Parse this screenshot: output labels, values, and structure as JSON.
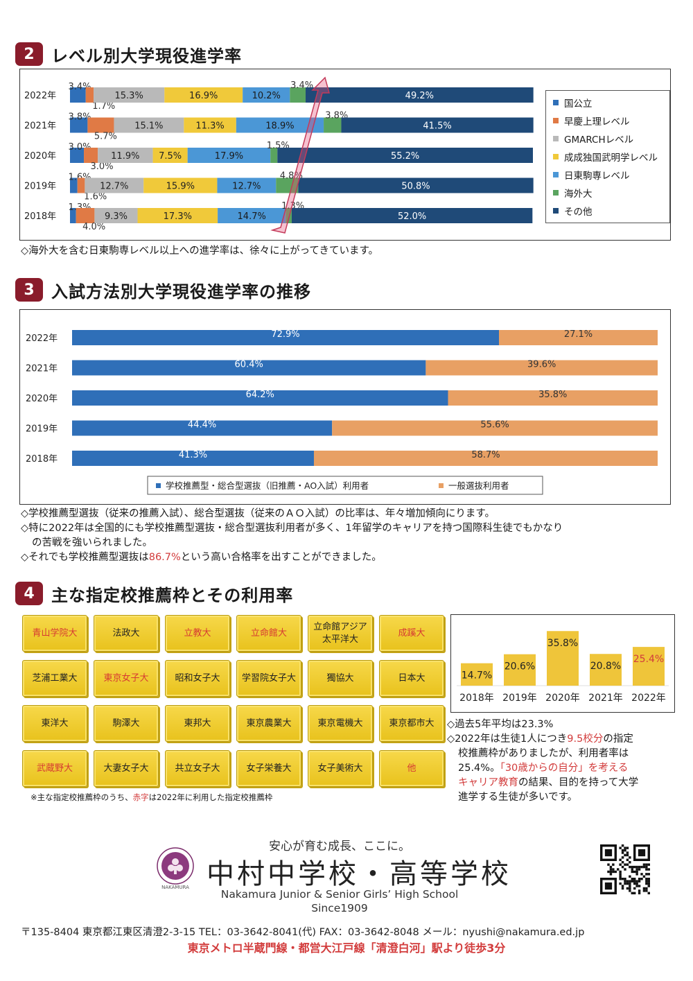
{
  "colors": {
    "kokkoritsu": "#2f6fb8",
    "soukei": "#e07a45",
    "gmarch": "#b9b9b9",
    "seisei": "#f0c93a",
    "nittou": "#4b97d6",
    "kaigai": "#5aa45f",
    "sonota": "#1f4a78",
    "suisen": "#2f6fb8",
    "ippan": "#e8a064",
    "accent": "#d23b3b",
    "section": "#8a1c2b"
  },
  "section2": {
    "num": "2",
    "title": "レベル別大学現役進学率",
    "note": "◇海外大を含む日東駒専レベル以上への進学率は、徐々に上がってきています。"
  },
  "section3": {
    "num": "3",
    "title": "入試方法別大学現役進学率の推移",
    "notes": [
      "◇学校推薦型選抜（従来の推薦入試）、総合型選抜（従来のＡＯ入試）の比率は、年々増加傾向にります。",
      "◇特に2022年は全国的にも学校推薦型選抜・総合型選抜利用者が多く、1年留学のキャリアを持つ国際科生徒でもかなり",
      "の苦戦を強いられました。"
    ],
    "note4_pre": "◇それでも学校推薦型選抜は",
    "note4_hl": "86.7%",
    "note4_post": "という高い合格率を出すことができました。"
  },
  "section4": {
    "num": "4",
    "title": "主な指定校推薦枠とその利用率",
    "tiles": [
      {
        "label": "青山学院大",
        "hl": true
      },
      {
        "label": "法政大",
        "hl": false
      },
      {
        "label": "立教大",
        "hl": true
      },
      {
        "label": "立命館大",
        "hl": true
      },
      {
        "label": "立命館アジア太平洋大",
        "hl": false
      },
      {
        "label": "成蹊大",
        "hl": true
      },
      {
        "label": "芝浦工業大",
        "hl": false
      },
      {
        "label": "東京女子大",
        "hl": true
      },
      {
        "label": "昭和女子大",
        "hl": false
      },
      {
        "label": "学習院女子大",
        "hl": false
      },
      {
        "label": "獨協大",
        "hl": false
      },
      {
        "label": "日本大",
        "hl": false
      },
      {
        "label": "東洋大",
        "hl": false
      },
      {
        "label": "駒澤大",
        "hl": false
      },
      {
        "label": "東邦大",
        "hl": false
      },
      {
        "label": "東京農業大",
        "hl": false
      },
      {
        "label": "東京電機大",
        "hl": false
      },
      {
        "label": "東京都市大",
        "hl": false
      },
      {
        "label": "武蔵野大",
        "hl": true
      },
      {
        "label": "大妻女子大",
        "hl": false
      },
      {
        "label": "共立女子大",
        "hl": false
      },
      {
        "label": "女子栄養大",
        "hl": false
      },
      {
        "label": "女子美術大",
        "hl": false
      },
      {
        "label": "他",
        "hl": true
      }
    ],
    "footnote_pre": "※主な指定校推薦枠のうち、",
    "footnote_hl": "赤字",
    "footnote_post": "は2022年に利用した指定校推薦枠",
    "summary": {
      "line1": "◇過去5年平均は23.3%",
      "line2_pre": "◇2022年は生徒1人につき",
      "line2_hl": "9.5校分",
      "line2_post": "の指定",
      "line3": "校推薦枠がありましたが、利用者率は",
      "line4_pre": "25.4%。",
      "line4_hl": "「30歳からの自分」を考える",
      "line5_hl": "キャリア教育",
      "line5_post": "の結果、目的を持って大学",
      "line6": "進学する生徒が多いです。"
    }
  },
  "footer": {
    "tagline": "安心が育む成長、ここに。",
    "school_name": "中村中学校・高等学校",
    "school_en": "Nakamura Junior & Senior Girls’ High School",
    "since": "Since1909",
    "logo_text": "NAKAMURA",
    "address": "〒135-8404 東京都江東区清澄2-3-15 TEL：03-3642-8041(代) FAX：03-3642-8048 メール：nyushi@nakamura.ed.jp",
    "access": "東京メトロ半蔵門線・都営大江戸線「清澄白河」駅より徒歩3分"
  },
  "chart_data": [
    {
      "type": "bar",
      "stacked": true,
      "orientation": "horizontal",
      "categories": [
        "2022年",
        "2021年",
        "2020年",
        "2019年",
        "2018年"
      ],
      "series": [
        {
          "name": "国公立",
          "values": [
            3.4,
            3.8,
            3.0,
            1.6,
            1.3
          ],
          "labels": [
            "3.4%",
            "3.8%",
            "3.0%",
            "1.6%",
            "1.3%"
          ]
        },
        {
          "name": "早慶上理レベル",
          "values": [
            1.7,
            5.7,
            3.0,
            1.6,
            4.0
          ],
          "labels": [
            "1.7%",
            "5.7%",
            "3.0%",
            "1.6%",
            "4.0%"
          ]
        },
        {
          "name": "GMARCHレベル",
          "values": [
            15.3,
            15.1,
            11.9,
            12.7,
            9.3
          ],
          "labels": [
            "15.3%",
            "15.1%",
            "11.9%",
            "12.7%",
            "9.3%"
          ]
        },
        {
          "name": "成成独国武明学レベル",
          "values": [
            16.9,
            11.3,
            7.5,
            15.9,
            17.3
          ],
          "labels": [
            "16.9%",
            "11.3%",
            "7.5%",
            "15.9%",
            "17.3%"
          ]
        },
        {
          "name": "日東駒専レベル",
          "values": [
            10.2,
            18.9,
            17.9,
            12.7,
            14.7
          ],
          "labels": [
            "10.2%",
            "18.9%",
            "17.9%",
            "12.7%",
            "14.7%"
          ]
        },
        {
          "name": "海外大",
          "values": [
            3.4,
            3.8,
            1.5,
            4.8,
            1.3
          ],
          "labels": [
            "3.4%",
            "3.8%",
            "1.5%",
            "4.8%",
            "1.3%"
          ]
        },
        {
          "name": "その他",
          "values": [
            49.2,
            41.5,
            55.2,
            50.8,
            52.0
          ],
          "labels": [
            "49.2%",
            "41.5%",
            "55.2%",
            "50.8%",
            "52.0%"
          ]
        }
      ],
      "legend": "right",
      "xlim": [
        0,
        100
      ]
    },
    {
      "type": "bar",
      "stacked": true,
      "orientation": "horizontal",
      "categories": [
        "2022年",
        "2021年",
        "2020年",
        "2019年",
        "2018年"
      ],
      "series": [
        {
          "name": "学校推薦型・総合型選抜（旧推薦・AO入試）利用者",
          "values": [
            72.9,
            60.4,
            64.2,
            44.4,
            41.3
          ],
          "labels": [
            "72.9%",
            "60.4%",
            "64.2%",
            "44.4%",
            "41.3%"
          ]
        },
        {
          "name": "一般選抜利用者",
          "values": [
            27.1,
            39.6,
            35.8,
            55.6,
            58.7
          ],
          "labels": [
            "27.1%",
            "39.6%",
            "35.8%",
            "55.6%",
            "58.7%"
          ]
        }
      ],
      "legend": "bottom",
      "xlim": [
        0,
        100
      ]
    },
    {
      "type": "bar",
      "categories": [
        "2018年",
        "2019年",
        "2020年",
        "2021年",
        "2022年"
      ],
      "values": [
        14.7,
        20.6,
        35.8,
        20.8,
        25.4
      ],
      "labels": [
        "14.7%",
        "20.6%",
        "35.8%",
        "20.8%",
        "25.4%"
      ],
      "highlight_index": 4,
      "ylim": [
        0,
        40
      ]
    }
  ]
}
